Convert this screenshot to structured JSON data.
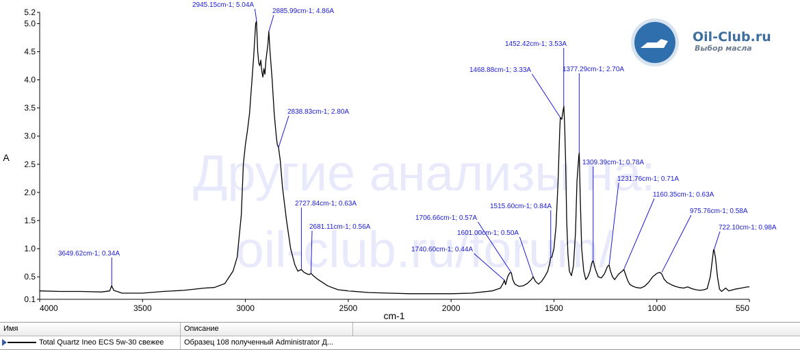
{
  "watermark": {
    "line1": "Другие анализы на:",
    "line2": "oil-club.ru/forum/"
  },
  "logo": {
    "title": "Oil-Club.ru",
    "subtitle": "Выбор масла"
  },
  "colors": {
    "annotation": "#1a1ad8",
    "spectrum": "#000000"
  },
  "chart_data": {
    "type": "line",
    "xlabel": "cm-1",
    "ylabel": "A",
    "xlim": [
      4000,
      550
    ],
    "ylim": [
      0.1,
      5.2
    ],
    "x_reversed": true,
    "grid": false,
    "xticks": [
      4000,
      3500,
      3000,
      2500,
      2000,
      1500,
      1000,
      550
    ],
    "yticks": [
      0.1,
      0.5,
      1.0,
      1.5,
      2.0,
      2.5,
      3.0,
      3.5,
      4.0,
      4.5,
      5.0,
      5.2
    ],
    "xtick_labels": [
      "4000",
      "3500",
      "3000",
      "2500",
      "2000",
      "1500",
      "1000",
      "550"
    ],
    "ytick_labels": [
      "0.1",
      "0.5",
      "1.0",
      "1.5",
      "2.0",
      "2.5",
      "3.0",
      "3.5",
      "4.0",
      "4.5",
      "5.0",
      "5.2"
    ],
    "series": [
      {
        "x": [
          4000,
          3900,
          3800,
          3700,
          3660,
          3650,
          3640,
          3600,
          3500,
          3400,
          3300,
          3200,
          3150,
          3100,
          3060,
          3040,
          3020,
          3010,
          3000,
          2990,
          2980,
          2970,
          2960,
          2950,
          2946,
          2940,
          2935,
          2930,
          2925,
          2920,
          2915,
          2910,
          2905,
          2900,
          2895,
          2890,
          2886,
          2880,
          2870,
          2860,
          2850,
          2845,
          2839,
          2830,
          2820,
          2800,
          2780,
          2760,
          2745,
          2728,
          2715,
          2700,
          2690,
          2681,
          2670,
          2650,
          2600,
          2550,
          2500,
          2400,
          2300,
          2200,
          2100,
          2000,
          1900,
          1800,
          1760,
          1745,
          1741,
          1735,
          1725,
          1715,
          1707,
          1700,
          1690,
          1670,
          1650,
          1630,
          1610,
          1601,
          1590,
          1575,
          1560,
          1545,
          1530,
          1520,
          1516,
          1510,
          1500,
          1490,
          1480,
          1472,
          1469,
          1462,
          1458,
          1452,
          1448,
          1443,
          1438,
          1432,
          1425,
          1415,
          1405,
          1395,
          1388,
          1382,
          1379,
          1377,
          1372,
          1365,
          1355,
          1345,
          1335,
          1325,
          1318,
          1312,
          1309,
          1300,
          1285,
          1270,
          1255,
          1240,
          1232,
          1225,
          1215,
          1205,
          1195,
          1185,
          1175,
          1168,
          1160,
          1150,
          1140,
          1130,
          1115,
          1100,
          1080,
          1060,
          1040,
          1020,
          1000,
          985,
          976,
          965,
          950,
          930,
          910,
          890,
          870,
          850,
          830,
          810,
          790,
          770,
          755,
          740,
          730,
          724,
          722,
          715,
          705,
          695,
          685,
          675,
          665,
          650,
          620,
          590,
          560,
          550
        ],
        "y": [
          0.25,
          0.24,
          0.24,
          0.23,
          0.25,
          0.34,
          0.26,
          0.21,
          0.21,
          0.24,
          0.26,
          0.3,
          0.31,
          0.38,
          0.6,
          0.85,
          1.6,
          2.5,
          2.85,
          3.1,
          3.4,
          3.9,
          4.4,
          5.0,
          5.04,
          4.5,
          4.3,
          4.25,
          4.35,
          4.15,
          4.05,
          4.2,
          4.1,
          4.35,
          4.5,
          4.65,
          4.86,
          4.5,
          4.0,
          3.4,
          3.0,
          2.85,
          2.8,
          2.55,
          2.1,
          1.5,
          1.0,
          0.72,
          0.6,
          0.63,
          0.58,
          0.55,
          0.54,
          0.56,
          0.52,
          0.46,
          0.34,
          0.27,
          0.25,
          0.22,
          0.21,
          0.2,
          0.2,
          0.2,
          0.21,
          0.25,
          0.3,
          0.4,
          0.44,
          0.36,
          0.5,
          0.57,
          0.57,
          0.45,
          0.37,
          0.33,
          0.34,
          0.38,
          0.45,
          0.5,
          0.42,
          0.37,
          0.42,
          0.5,
          0.6,
          0.75,
          0.84,
          0.85,
          1.0,
          1.4,
          2.2,
          3.1,
          3.33,
          3.3,
          3.4,
          3.53,
          3.2,
          2.5,
          1.5,
          0.9,
          0.6,
          0.52,
          0.7,
          1.3,
          2.2,
          2.5,
          2.65,
          2.7,
          1.9,
          1.0,
          0.6,
          0.45,
          0.5,
          0.6,
          0.72,
          0.78,
          0.78,
          0.65,
          0.5,
          0.48,
          0.55,
          0.68,
          0.71,
          0.6,
          0.5,
          0.45,
          0.5,
          0.55,
          0.58,
          0.6,
          0.63,
          0.52,
          0.42,
          0.36,
          0.33,
          0.31,
          0.3,
          0.33,
          0.4,
          0.5,
          0.56,
          0.58,
          0.55,
          0.46,
          0.4,
          0.36,
          0.33,
          0.31,
          0.3,
          0.32,
          0.29,
          0.27,
          0.26,
          0.27,
          0.29,
          0.5,
          0.8,
          0.98,
          0.98,
          0.85,
          0.5,
          0.28,
          0.24,
          0.27,
          0.3,
          0.25,
          0.28,
          0.3,
          0.32,
          0.32
        ]
      }
    ],
    "annotations": [
      {
        "x": 2945.15,
        "y": 5.04,
        "text": "2945.15cm-1; 5.04A"
      },
      {
        "x": 2885.99,
        "y": 4.86,
        "text": "2885.99cm-1; 4.86A"
      },
      {
        "x": 2838.83,
        "y": 2.8,
        "text": "2838.83cm-1; 2.80A"
      },
      {
        "x": 2727.84,
        "y": 0.63,
        "text": "2727.84cm-1; 0.63A"
      },
      {
        "x": 2681.11,
        "y": 0.56,
        "text": "2681.11cm-1; 0.56A"
      },
      {
        "x": 3649.62,
        "y": 0.34,
        "text": "3649.62cm-1; 0.34A"
      },
      {
        "x": 1740.6,
        "y": 0.44,
        "text": "1740.60cm-1; 0.44A"
      },
      {
        "x": 1706.66,
        "y": 0.57,
        "text": "1706.66cm-1; 0.57A"
      },
      {
        "x": 1601.0,
        "y": 0.5,
        "text": "1601.00cm-1; 0.50A"
      },
      {
        "x": 1515.6,
        "y": 0.84,
        "text": "1515.60cm-1; 0.84A"
      },
      {
        "x": 1468.88,
        "y": 3.33,
        "text": "1468.88cm-1; 3.33A"
      },
      {
        "x": 1452.42,
        "y": 3.53,
        "text": "1452.42cm-1; 3.53A"
      },
      {
        "x": 1377.29,
        "y": 2.7,
        "text": "1377.29cm-1; 2.70A"
      },
      {
        "x": 1309.39,
        "y": 0.78,
        "text": "1309.39cm-1; 0.78A"
      },
      {
        "x": 1231.76,
        "y": 0.71,
        "text": "1231.76cm-1; 0.71A"
      },
      {
        "x": 1160.35,
        "y": 0.63,
        "text": "1160.35cm-1; 0.63A"
      },
      {
        "x": 975.76,
        "y": 0.58,
        "text": "975.76cm-1; 0.58A"
      },
      {
        "x": 722.1,
        "y": 0.98,
        "text": "722.10cm-1; 0.98A"
      }
    ]
  },
  "legend": {
    "headers": [
      "Имя",
      "Описание"
    ],
    "rows": [
      {
        "name": "Total Quartz Ineo ECS 5w-30 свежее",
        "description": "Образец 108 полученный Administrator Д..."
      }
    ]
  }
}
